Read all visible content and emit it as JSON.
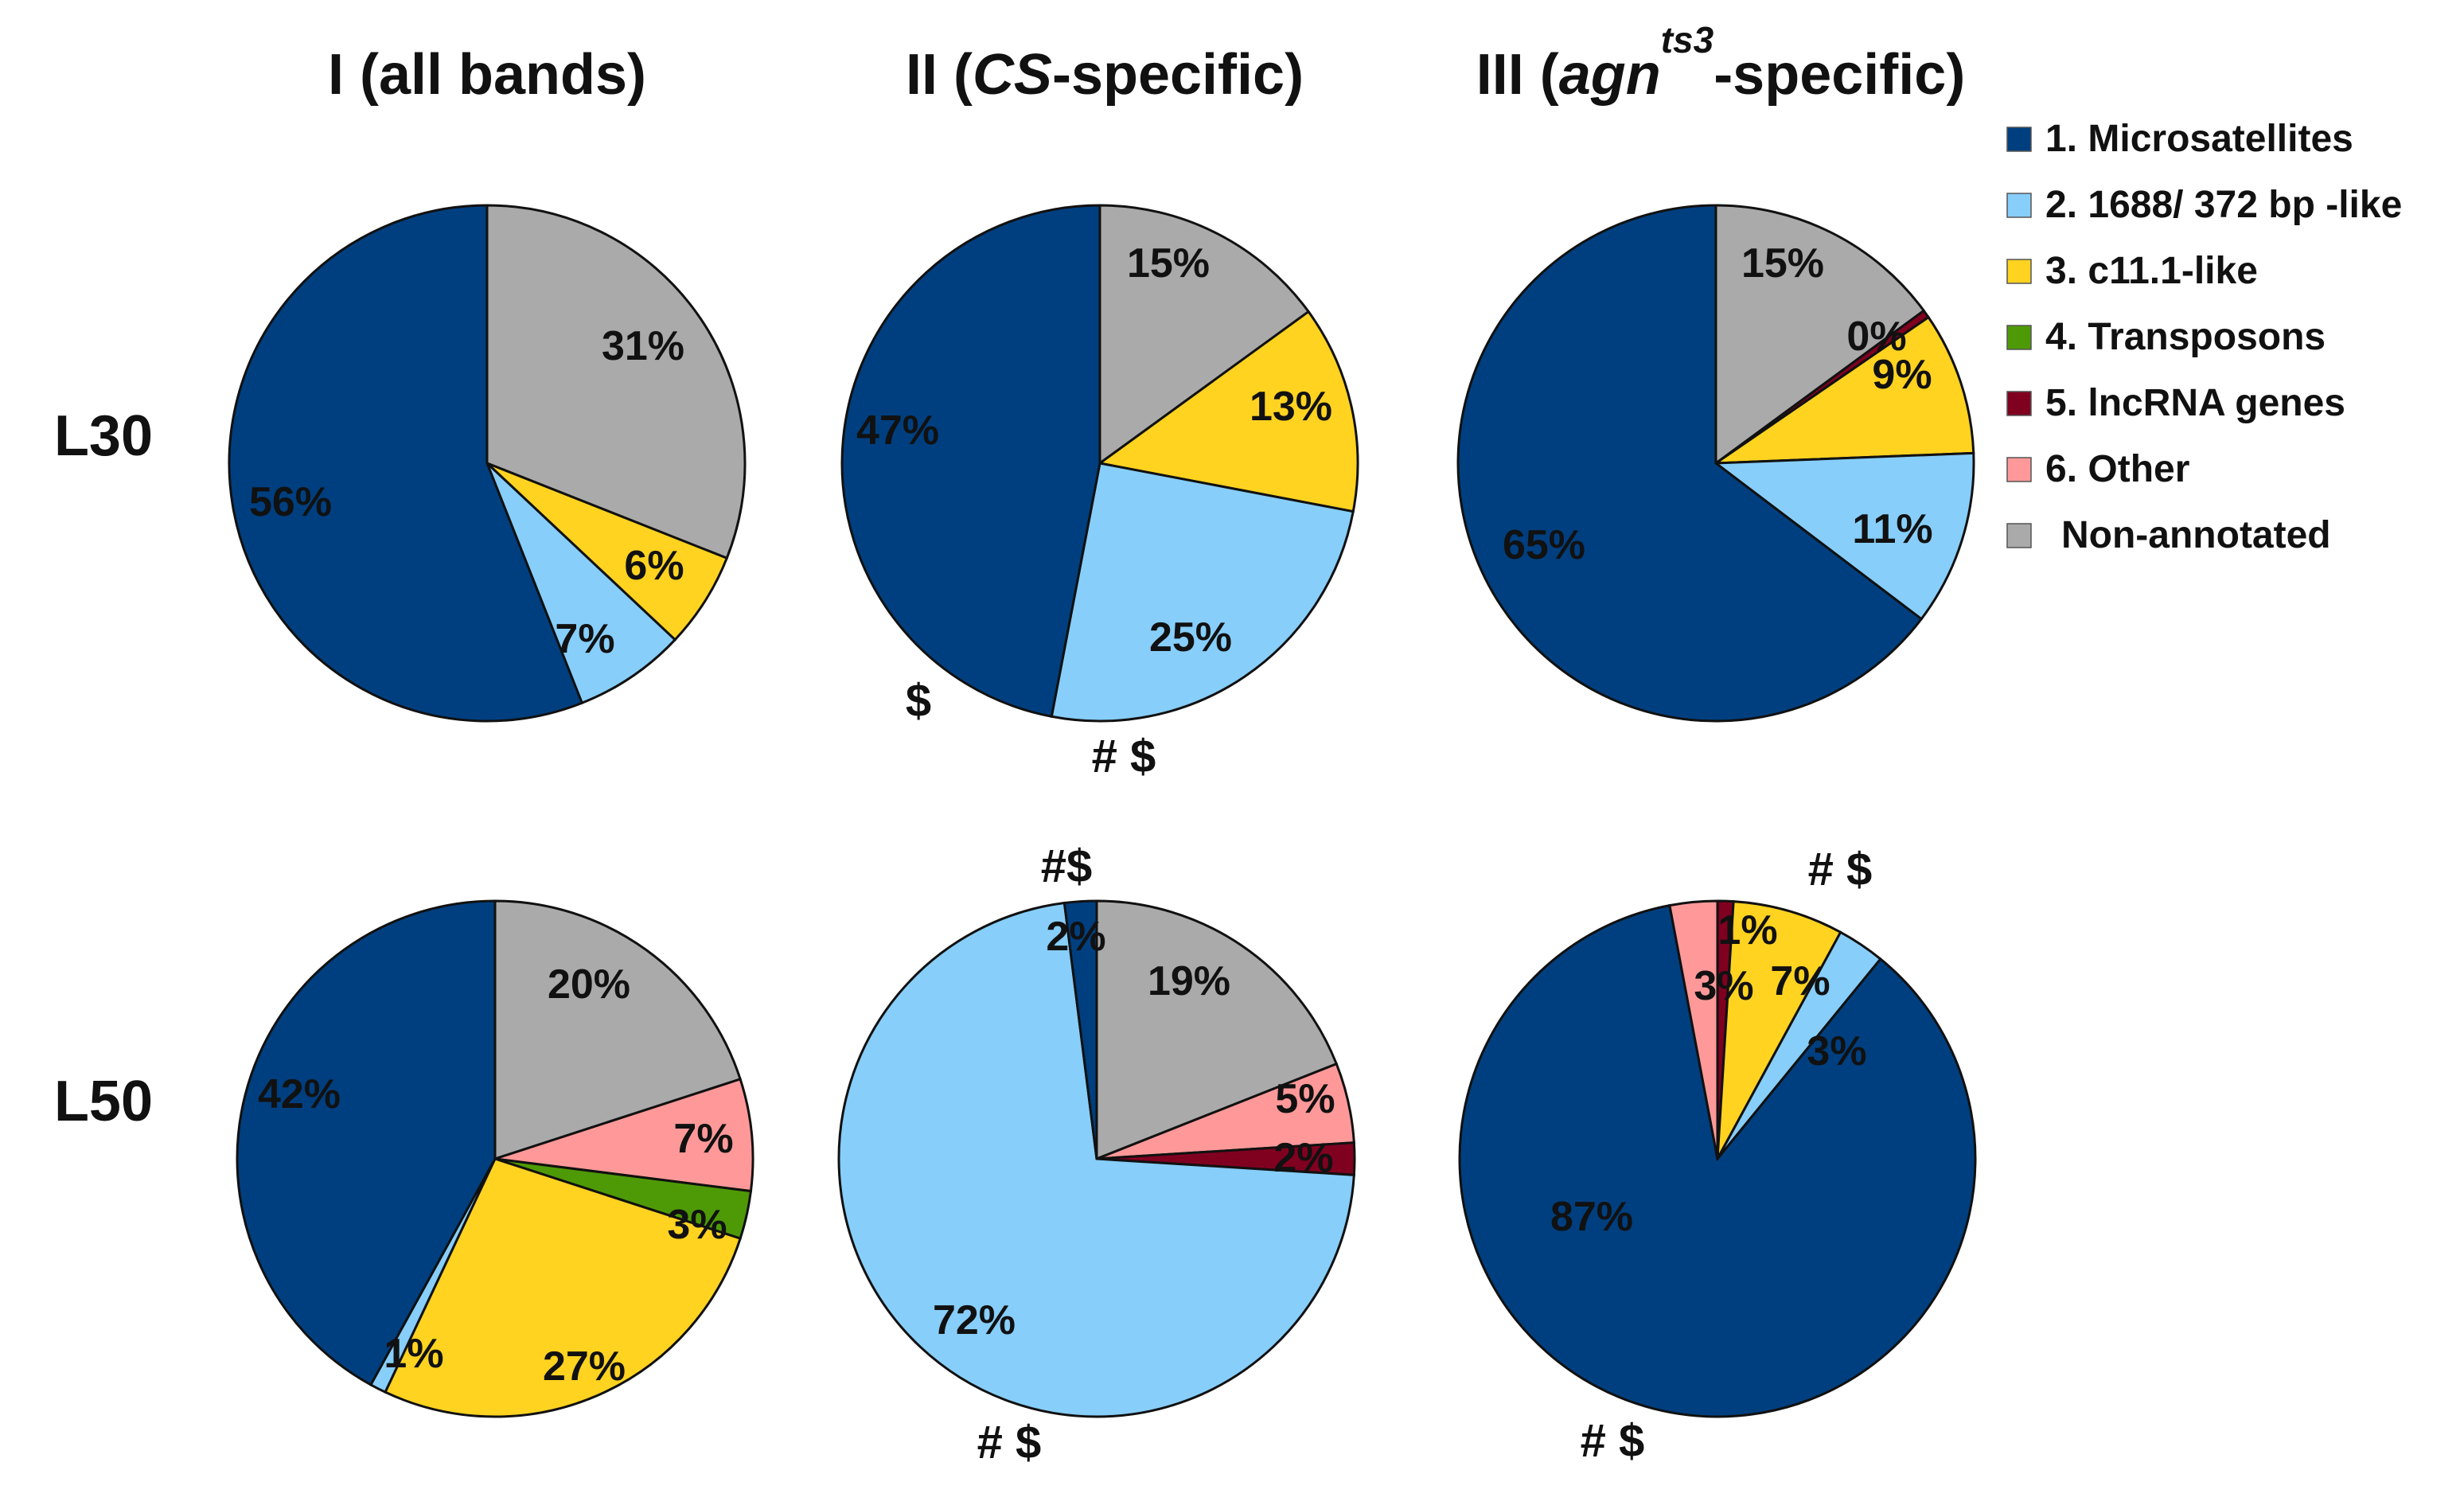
{
  "column_titles": [
    {
      "pre": "I (all bands)",
      "ital": "",
      "sup": "",
      "post": ""
    },
    {
      "pre": "II (",
      "ital": "CS",
      "sup": "",
      "post": "-specific)"
    },
    {
      "pre": "III (",
      "ital": "agn",
      "sup": "ts3",
      "post": "-specific)"
    }
  ],
  "row_labels": [
    "L30",
    "L50"
  ],
  "legend": [
    {
      "label": "1. Microsatellites",
      "color": "#003f7f"
    },
    {
      "label": "2. 1688/ 372 bp -like",
      "color": "#87cefa"
    },
    {
      "label": "3. c11.1-like",
      "color": "#ffd320"
    },
    {
      "label": "4. Transposons",
      "color": "#4e9a06"
    },
    {
      "label": "5. lncRNA genes",
      "color": "#800020"
    },
    {
      "label": "6. Other",
      "color": "#ff9999"
    },
    {
      "label": "Non-annotated",
      "color": "#aaaaaa"
    }
  ],
  "chart_data": [
    {
      "type": "pie",
      "title": "I (all bands)",
      "row": "L30",
      "labels": [
        "Non-annotated",
        "3. c11.1-like",
        "2. 1688/ 372 bp -like",
        "1. Microsatellites"
      ],
      "values": [
        31,
        6,
        7,
        56
      ],
      "data_labels": [
        "31%",
        "6%",
        "7%",
        "56%"
      ],
      "annotations": []
    },
    {
      "type": "pie",
      "title": "II (CS-specific)",
      "row": "L30",
      "labels": [
        "Non-annotated",
        "3. c11.1-like",
        "2. 1688/ 372 bp -like",
        "1. Microsatellites"
      ],
      "values": [
        15,
        13,
        25,
        47
      ],
      "data_labels": [
        "15%",
        "13%",
        "25%",
        "47%"
      ],
      "annotations": [
        "$",
        "# $"
      ]
    },
    {
      "type": "pie",
      "title": "III (agn ts3-specific)",
      "row": "L30",
      "labels": [
        "Non-annotated",
        "5. lncRNA genes",
        "3. c11.1-like",
        "2. 1688/ 372 bp -like",
        "1. Microsatellites"
      ],
      "values": [
        15,
        0.5,
        9,
        11,
        65
      ],
      "data_labels": [
        "15%",
        "0%",
        "9%",
        "11%",
        "65%"
      ],
      "annotations": []
    },
    {
      "type": "pie",
      "title": "I (all bands)",
      "row": "L50",
      "labels": [
        "Non-annotated",
        "6. Other",
        "4. Transposons",
        "3. c11.1-like",
        "2. 1688/ 372 bp -like",
        "1. Microsatellites"
      ],
      "values": [
        20,
        7,
        3,
        27,
        1,
        42
      ],
      "data_labels": [
        "20%",
        "7%",
        "3%",
        "27%",
        "1%",
        "42%"
      ],
      "annotations": []
    },
    {
      "type": "pie",
      "title": "II (CS-specific)",
      "row": "L50",
      "labels": [
        "Non-annotated",
        "6. Other",
        "5. lncRNA genes",
        "2. 1688/ 372 bp -like",
        "1. Microsatellites"
      ],
      "values": [
        19,
        5,
        2,
        72,
        2
      ],
      "data_labels": [
        "19%",
        "5%",
        "2%",
        "72%",
        "2%"
      ],
      "annotations": [
        "#$",
        "# $"
      ]
    },
    {
      "type": "pie",
      "title": "III (agn ts3-specific)",
      "row": "L50",
      "labels": [
        "5. lncRNA genes",
        "3. c11.1-like",
        "2. 1688/ 372 bp -like",
        "1. Microsatellites",
        "6. Other"
      ],
      "values": [
        1,
        7,
        3,
        87,
        3
      ],
      "data_labels": [
        "1%",
        "7%",
        "3%",
        "87%",
        "3%"
      ],
      "annotations": [
        "# $",
        "# $"
      ]
    }
  ]
}
